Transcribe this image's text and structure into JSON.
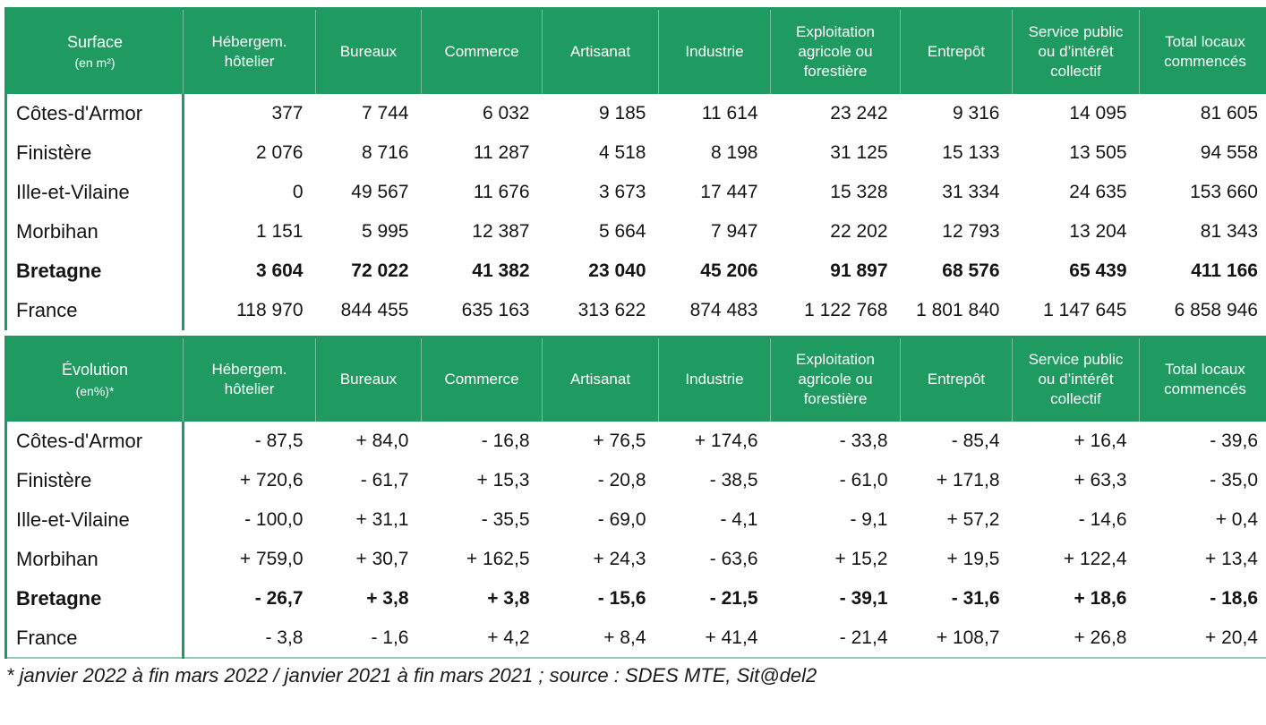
{
  "theme": {
    "header_green": "#1f9b62",
    "header_separator": "rgba(255,255,255,0.38)",
    "bottom_border_light_green": "#8fd0b2",
    "text_color": "#141414"
  },
  "columns": [
    "Hébergem. hôtelier",
    "Bureaux",
    "Commerce",
    "Artisanat",
    "Industrie",
    "Exploitation agricole ou forestière",
    "Entrepôt",
    "Service public ou d’intérêt collectif",
    "Total locaux commencés"
  ],
  "surface_table": {
    "corner_title": "Surface",
    "corner_subtitle": "(en m²)",
    "rows": [
      {
        "label": "Côtes-d'Armor",
        "bold": false,
        "values": [
          "377",
          "7 744",
          "6 032",
          "9 185",
          "11 614",
          "23 242",
          "9 316",
          "14 095",
          "81 605"
        ]
      },
      {
        "label": "Finistère",
        "bold": false,
        "values": [
          "2 076",
          "8 716",
          "11 287",
          "4 518",
          "8 198",
          "31 125",
          "15 133",
          "13 505",
          "94 558"
        ]
      },
      {
        "label": "Ille-et-Vilaine",
        "bold": false,
        "values": [
          "0",
          "49 567",
          "11 676",
          "3 673",
          "17 447",
          "15 328",
          "31 334",
          "24 635",
          "153 660"
        ]
      },
      {
        "label": "Morbihan",
        "bold": false,
        "values": [
          "1 151",
          "5 995",
          "12 387",
          "5 664",
          "7 947",
          "22 202",
          "12 793",
          "13 204",
          "81 343"
        ]
      },
      {
        "label": "Bretagne",
        "bold": true,
        "values": [
          "3 604",
          "72 022",
          "41 382",
          "23 040",
          "45 206",
          "91 897",
          "68 576",
          "65 439",
          "411 166"
        ]
      },
      {
        "label": "France",
        "bold": false,
        "values": [
          "118 970",
          "844 455",
          "635 163",
          "313 622",
          "874 483",
          "1 122 768",
          "1 801 840",
          "1 147 645",
          "6 858 946"
        ]
      }
    ]
  },
  "evolution_table": {
    "corner_title": "Évolution",
    "corner_subtitle": "(en%)*",
    "rows": [
      {
        "label": "Côtes-d'Armor",
        "bold": false,
        "values": [
          "- 87,5",
          "+ 84,0",
          "- 16,8",
          "+ 76,5",
          "+ 174,6",
          "- 33,8",
          "- 85,4",
          "+ 16,4",
          "- 39,6"
        ]
      },
      {
        "label": "Finistère",
        "bold": false,
        "values": [
          "+ 720,6",
          "- 61,7",
          "+ 15,3",
          "- 20,8",
          "- 38,5",
          "- 61,0",
          "+ 171,8",
          "+ 63,3",
          "- 35,0"
        ]
      },
      {
        "label": "Ille-et-Vilaine",
        "bold": false,
        "values": [
          "- 100,0",
          "+ 31,1",
          "- 35,5",
          "- 69,0",
          "- 4,1",
          "- 9,1",
          "+ 57,2",
          "- 14,6",
          "+ 0,4"
        ]
      },
      {
        "label": "Morbihan",
        "bold": false,
        "values": [
          "+ 759,0",
          "+ 30,7",
          "+ 162,5",
          "+ 24,3",
          "- 63,6",
          "+ 15,2",
          "+ 19,5",
          "+ 122,4",
          "+ 13,4"
        ]
      },
      {
        "label": "Bretagne",
        "bold": true,
        "values": [
          "- 26,7",
          "+ 3,8",
          "+ 3,8",
          "- 15,6",
          "- 21,5",
          "- 39,1",
          "- 31,6",
          "+ 18,6",
          "- 18,6"
        ]
      },
      {
        "label": "France",
        "bold": false,
        "values": [
          "- 3,8",
          "- 1,6",
          "+ 4,2",
          "+ 8,4",
          "+ 41,4",
          "- 21,4",
          "+ 108,7",
          "+ 26,8",
          "+ 20,4"
        ]
      }
    ]
  },
  "footnote": "* janvier 2022 à fin mars 2022 / janvier 2021 à fin mars 2021 ; source : SDES MTE, Sit@del2"
}
